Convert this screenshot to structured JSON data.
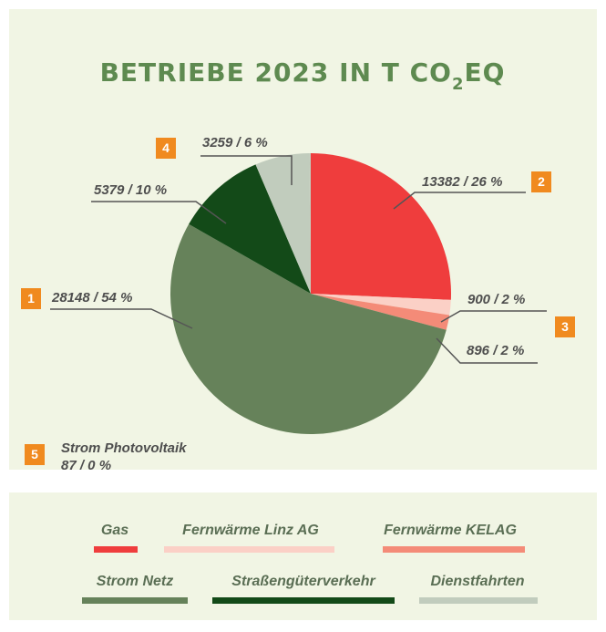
{
  "chart_data": {
    "type": "pie",
    "title_parts": [
      "BETRIEBE 2023 IN T CO",
      "2",
      "EQ"
    ],
    "categories": [
      "Gas",
      "Fernwärme Linz AG",
      "Fernwärme KELAG",
      "Strom Netz",
      "Straßengüterverkehr",
      "Dienstfahrten"
    ],
    "values": [
      13382,
      900,
      896,
      28148,
      5379,
      3259
    ],
    "value_labels": [
      "13382 / 26 %",
      "900 / 2 %",
      "896 / 2 %",
      "28148 / 54 %",
      "5379 / 10 %",
      "3259 / 6 %"
    ],
    "colors": [
      "#ef3d3d",
      "#fbd0c6",
      "#f48b78",
      "#66825a",
      "#134a18",
      "#c1ccbd"
    ],
    "badges": [
      "1",
      "2",
      "3",
      "4",
      "5"
    ],
    "annotation": {
      "name": "Strom Photovoltaik",
      "value": 87,
      "value_label": "87 / 0 %"
    }
  }
}
